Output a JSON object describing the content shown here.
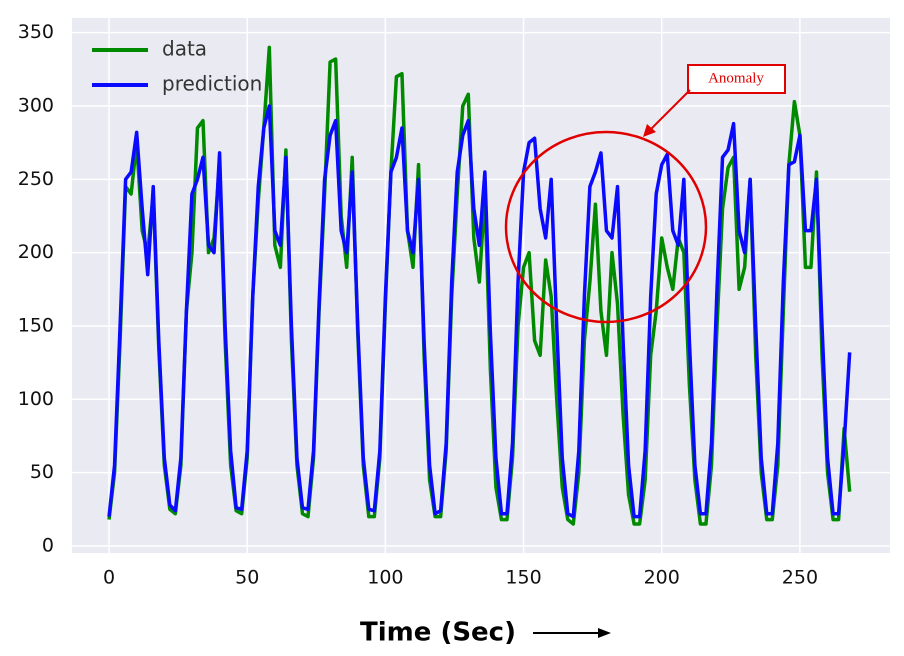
{
  "chart_data": {
    "type": "line",
    "x": [
      0,
      2,
      4,
      6,
      8,
      10,
      12,
      14,
      16,
      18,
      20,
      22,
      24,
      26,
      28,
      30,
      32,
      34,
      36,
      38,
      40,
      42,
      44,
      46,
      48,
      50,
      52,
      54,
      56,
      58,
      60,
      62,
      64,
      66,
      68,
      70,
      72,
      74,
      76,
      78,
      80,
      82,
      84,
      86,
      88,
      90,
      92,
      94,
      96,
      98,
      100,
      102,
      104,
      106,
      108,
      110,
      112,
      114,
      116,
      118,
      120,
      122,
      124,
      126,
      128,
      130,
      132,
      134,
      136,
      138,
      140,
      142,
      144,
      146,
      148,
      150,
      152,
      154,
      156,
      158,
      160,
      162,
      164,
      166,
      168,
      170,
      172,
      174,
      176,
      178,
      180,
      182,
      184,
      186,
      188,
      190,
      192,
      194,
      196,
      198,
      200,
      202,
      204,
      206,
      208,
      210,
      212,
      214,
      216,
      218,
      220,
      222,
      224,
      226,
      228,
      230,
      232,
      234,
      236,
      238,
      240,
      242,
      244,
      246,
      248,
      250,
      252,
      254,
      256,
      258,
      260,
      262,
      264,
      266,
      268
    ],
    "series": [
      {
        "name": "data",
        "color": "#008a00",
        "values": [
          18,
          50,
          140,
          245,
          240,
          275,
          215,
          200,
          240,
          135,
          55,
          25,
          22,
          55,
          160,
          200,
          285,
          290,
          200,
          210,
          260,
          140,
          55,
          24,
          22,
          60,
          170,
          235,
          285,
          340,
          205,
          190,
          270,
          140,
          55,
          22,
          20,
          60,
          160,
          240,
          330,
          332,
          225,
          190,
          265,
          145,
          55,
          20,
          20,
          60,
          165,
          255,
          320,
          322,
          215,
          190,
          260,
          130,
          45,
          20,
          20,
          65,
          170,
          240,
          300,
          308,
          210,
          180,
          240,
          120,
          40,
          18,
          18,
          60,
          150,
          190,
          200,
          140,
          130,
          195,
          170,
          100,
          40,
          18,
          15,
          50,
          140,
          180,
          233,
          160,
          130,
          200,
          165,
          90,
          35,
          15,
          15,
          45,
          130,
          160,
          210,
          190,
          175,
          210,
          200,
          110,
          45,
          15,
          15,
          55,
          150,
          230,
          258,
          265,
          175,
          190,
          250,
          130,
          50,
          18,
          18,
          55,
          160,
          260,
          303,
          280,
          190,
          190,
          255,
          130,
          50,
          18,
          18,
          80,
          37
        ]
      },
      {
        "name": "prediction",
        "color": "#0a0aff",
        "values": [
          20,
          55,
          150,
          250,
          255,
          282,
          230,
          185,
          245,
          140,
          60,
          28,
          24,
          60,
          160,
          240,
          250,
          265,
          205,
          200,
          268,
          150,
          65,
          26,
          25,
          65,
          170,
          245,
          285,
          300,
          215,
          205,
          265,
          150,
          60,
          26,
          25,
          65,
          165,
          250,
          280,
          290,
          215,
          200,
          255,
          150,
          60,
          25,
          24,
          65,
          170,
          255,
          265,
          285,
          215,
          200,
          250,
          140,
          55,
          22,
          24,
          70,
          180,
          255,
          280,
          290,
          230,
          205,
          255,
          145,
          60,
          22,
          22,
          70,
          180,
          255,
          275,
          278,
          230,
          210,
          250,
          150,
          60,
          22,
          20,
          65,
          170,
          245,
          255,
          268,
          215,
          210,
          245,
          140,
          55,
          20,
          20,
          65,
          170,
          240,
          260,
          267,
          215,
          205,
          250,
          140,
          55,
          22,
          22,
          70,
          175,
          265,
          270,
          288,
          215,
          200,
          250,
          150,
          60,
          22,
          22,
          70,
          180,
          260,
          262,
          280,
          215,
          215,
          250,
          150,
          60,
          22,
          22,
          70,
          132
        ]
      }
    ],
    "xlim": [
      -13.4,
      282.6
    ],
    "ylim": [
      -4.8,
      360
    ],
    "xticks": [
      0,
      50,
      100,
      150,
      200,
      250
    ],
    "yticks": [
      0,
      50,
      100,
      150,
      200,
      250,
      300,
      350
    ],
    "xlabel": "Time (Sec)",
    "annotation": "Anomaly",
    "grid": true
  }
}
